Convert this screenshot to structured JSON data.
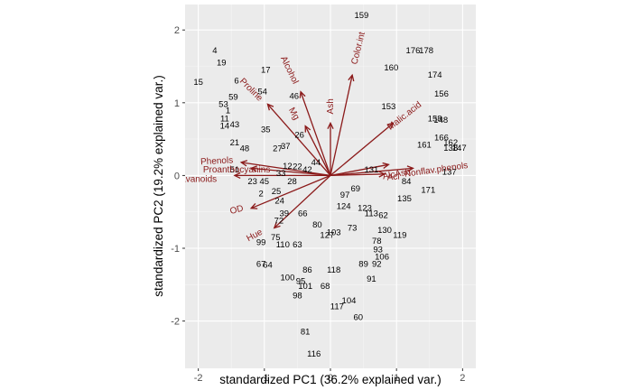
{
  "chart_data": {
    "type": "scatter",
    "subtype": "pca-biplot",
    "title": "",
    "xlabel": "standardized PC1 (36.2% explained var.)",
    "ylabel": "standardized PC2 (19.2% explained var.)",
    "xlim": [
      -2.2,
      2.2
    ],
    "ylim": [
      -2.65,
      2.35
    ],
    "xticks": [
      -2,
      -1,
      0,
      1,
      2
    ],
    "yticks": [
      -2,
      -1,
      0,
      1,
      2
    ],
    "xtick_labels": [
      "-2",
      "-1",
      "0",
      "1",
      "2"
    ],
    "ytick_labels": [
      "-2",
      "-1",
      "0",
      "1",
      "2"
    ],
    "grid": true,
    "legend": "none",
    "colors": {
      "panel_background": "#ebebeb",
      "grid_major": "#ffffff",
      "grid_minor": "#f5f5f5",
      "arrow": "#8b1a1a",
      "point_label": "#000000",
      "tick_label": "#4d4d4d"
    },
    "points": [
      {
        "label": "159",
        "x": 0.47,
        "y": 2.2
      },
      {
        "label": "4",
        "x": -1.75,
        "y": 1.72
      },
      {
        "label": "19",
        "x": -1.65,
        "y": 1.55
      },
      {
        "label": "15",
        "x": -2.0,
        "y": 1.28
      },
      {
        "label": "17",
        "x": -0.98,
        "y": 1.45
      },
      {
        "label": "6",
        "x": -1.42,
        "y": 1.3
      },
      {
        "label": "53",
        "x": -1.62,
        "y": 0.98
      },
      {
        "label": "59",
        "x": -1.47,
        "y": 1.08
      },
      {
        "label": "54",
        "x": -1.03,
        "y": 1.15
      },
      {
        "label": "1",
        "x": -1.55,
        "y": 0.89
      },
      {
        "label": "11",
        "x": -1.6,
        "y": 0.78
      },
      {
        "label": "14",
        "x": -1.6,
        "y": 0.68
      },
      {
        "label": "43",
        "x": -1.45,
        "y": 0.7
      },
      {
        "label": "21",
        "x": -1.45,
        "y": 0.45
      },
      {
        "label": "48",
        "x": -1.3,
        "y": 0.37
      },
      {
        "label": "35",
        "x": -0.98,
        "y": 0.63
      },
      {
        "label": "46",
        "x": -0.55,
        "y": 1.09
      },
      {
        "label": "26",
        "x": -0.47,
        "y": 0.56
      },
      {
        "label": "37",
        "x": -0.68,
        "y": 0.4
      },
      {
        "label": "27",
        "x": -0.8,
        "y": 0.37
      },
      {
        "label": "44",
        "x": -0.22,
        "y": 0.18
      },
      {
        "label": "42",
        "x": -0.35,
        "y": 0.08
      },
      {
        "label": "22",
        "x": -0.5,
        "y": 0.12
      },
      {
        "label": "12",
        "x": -0.65,
        "y": 0.13
      },
      {
        "label": "33",
        "x": -0.75,
        "y": 0.03
      },
      {
        "label": "28",
        "x": -0.58,
        "y": -0.08
      },
      {
        "label": "45",
        "x": -1.0,
        "y": -0.08
      },
      {
        "label": "23",
        "x": -1.18,
        "y": -0.08
      },
      {
        "label": "51",
        "x": -1.45,
        "y": 0.08
      },
      {
        "label": "2",
        "x": -1.05,
        "y": -0.25
      },
      {
        "label": "25",
        "x": -0.82,
        "y": -0.22
      },
      {
        "label": "24",
        "x": -0.77,
        "y": -0.35
      },
      {
        "label": "72",
        "x": -0.78,
        "y": -0.62
      },
      {
        "label": "39",
        "x": -0.7,
        "y": -0.52
      },
      {
        "label": "66",
        "x": -0.42,
        "y": -0.52
      },
      {
        "label": "99",
        "x": -1.05,
        "y": -0.92
      },
      {
        "label": "75",
        "x": -0.83,
        "y": -0.85
      },
      {
        "label": "110",
        "x": -0.72,
        "y": -0.95
      },
      {
        "label": "63",
        "x": -0.5,
        "y": -0.95
      },
      {
        "label": "67",
        "x": -1.05,
        "y": -1.22
      },
      {
        "label": "64",
        "x": -0.95,
        "y": -1.23
      },
      {
        "label": "80",
        "x": -0.2,
        "y": -0.68
      },
      {
        "label": "127",
        "x": -0.05,
        "y": -0.82
      },
      {
        "label": "103",
        "x": 0.05,
        "y": -0.78
      },
      {
        "label": "73",
        "x": 0.33,
        "y": -0.72
      },
      {
        "label": "100",
        "x": -0.65,
        "y": -1.4
      },
      {
        "label": "86",
        "x": -0.35,
        "y": -1.3
      },
      {
        "label": "95",
        "x": -0.45,
        "y": -1.45
      },
      {
        "label": "101",
        "x": -0.38,
        "y": -1.52
      },
      {
        "label": "98",
        "x": -0.5,
        "y": -1.65
      },
      {
        "label": "68",
        "x": -0.08,
        "y": -1.52
      },
      {
        "label": "118",
        "x": 0.05,
        "y": -1.3
      },
      {
        "label": "117",
        "x": 0.1,
        "y": -1.8
      },
      {
        "label": "104",
        "x": 0.28,
        "y": -1.72
      },
      {
        "label": "60",
        "x": 0.42,
        "y": -1.95
      },
      {
        "label": "81",
        "x": -0.38,
        "y": -2.15
      },
      {
        "label": "116",
        "x": -0.25,
        "y": -2.45
      },
      {
        "label": "89",
        "x": 0.5,
        "y": -1.22
      },
      {
        "label": "92",
        "x": 0.7,
        "y": -1.22
      },
      {
        "label": "106",
        "x": 0.78,
        "y": -1.12
      },
      {
        "label": "93",
        "x": 0.72,
        "y": -1.02
      },
      {
        "label": "91",
        "x": 0.62,
        "y": -1.42
      },
      {
        "label": "119",
        "x": 1.05,
        "y": -0.82
      },
      {
        "label": "130",
        "x": 0.82,
        "y": -0.75
      },
      {
        "label": "78",
        "x": 0.7,
        "y": -0.9
      },
      {
        "label": "62",
        "x": 0.8,
        "y": -0.55
      },
      {
        "label": "123",
        "x": 0.52,
        "y": -0.45
      },
      {
        "label": "113",
        "x": 0.62,
        "y": -0.52
      },
      {
        "label": "124",
        "x": 0.2,
        "y": -0.42
      },
      {
        "label": "97",
        "x": 0.22,
        "y": -0.27
      },
      {
        "label": "69",
        "x": 0.38,
        "y": -0.18
      },
      {
        "label": "131",
        "x": 0.62,
        "y": 0.08
      },
      {
        "label": "135",
        "x": 1.12,
        "y": -0.32
      },
      {
        "label": "84",
        "x": 1.15,
        "y": -0.08
      },
      {
        "label": "171",
        "x": 1.48,
        "y": -0.2
      },
      {
        "label": "176",
        "x": 1.25,
        "y": 1.72
      },
      {
        "label": "178",
        "x": 1.45,
        "y": 1.72
      },
      {
        "label": "160",
        "x": 0.92,
        "y": 1.48
      },
      {
        "label": "174",
        "x": 1.58,
        "y": 1.38
      },
      {
        "label": "156",
        "x": 1.68,
        "y": 1.12
      },
      {
        "label": "153",
        "x": 0.88,
        "y": 0.95
      },
      {
        "label": "158",
        "x": 1.58,
        "y": 0.78
      },
      {
        "label": "148",
        "x": 1.67,
        "y": 0.76
      },
      {
        "label": "166",
        "x": 1.68,
        "y": 0.52
      },
      {
        "label": "162",
        "x": 1.82,
        "y": 0.45
      },
      {
        "label": "138",
        "x": 1.82,
        "y": 0.38
      },
      {
        "label": "147",
        "x": 1.95,
        "y": 0.38
      },
      {
        "label": "137",
        "x": 1.8,
        "y": 0.05
      },
      {
        "label": "161",
        "x": 1.42,
        "y": 0.42
      }
    ],
    "arrows": [
      {
        "label": "Alcohol",
        "x": -0.45,
        "y": 1.15,
        "label_x": -0.62,
        "label_y": 1.45,
        "label_angle": 64
      },
      {
        "label": "Color.int",
        "x": 0.33,
        "y": 1.38,
        "label_x": 0.42,
        "label_y": 1.75,
        "label_angle": -76
      },
      {
        "label": "Ash",
        "x": 0.0,
        "y": 0.72,
        "label_x": 0.0,
        "label_y": 0.95,
        "label_angle": -90
      },
      {
        "label": "Mg",
        "x": -0.38,
        "y": 0.68,
        "label_x": -0.55,
        "label_y": 0.85,
        "label_angle": 60
      },
      {
        "label": "Proline",
        "x": -0.95,
        "y": 0.98,
        "label_x": -1.2,
        "label_y": 1.18,
        "label_angle": 45
      },
      {
        "label": "Malic.acid",
        "x": 0.95,
        "y": 0.72,
        "label_x": 1.12,
        "label_y": 0.82,
        "label_angle": -38
      },
      {
        "label": "AlcAsh",
        "x": 0.88,
        "y": 0.15,
        "label_x": 1.0,
        "label_y": 0.02,
        "label_angle": -10
      },
      {
        "label": "Acl",
        "x": 0.82,
        "y": 0.02,
        "label_x": 0.95,
        "label_y": -0.02,
        "label_angle": -5
      },
      {
        "label": "Nonflav.phenols",
        "x": 1.25,
        "y": 0.1,
        "label_x": 1.6,
        "label_y": 0.08,
        "label_angle": -8
      },
      {
        "label": "Phenols",
        "x": -1.35,
        "y": 0.18,
        "label_x": -1.72,
        "label_y": 0.2,
        "label_angle": -3
      },
      {
        "label": "Proanthocyanins",
        "x": -1.2,
        "y": 0.1,
        "label_x": -1.42,
        "label_y": 0.08,
        "label_angle": 0
      },
      {
        "label": "Flavanoids",
        "x": -1.45,
        "y": 0.0,
        "label_x": -2.05,
        "label_y": -0.05,
        "label_angle": 0
      },
      {
        "label": "OD",
        "x": -1.2,
        "y": -0.45,
        "label_x": -1.42,
        "label_y": -0.47,
        "label_angle": -15
      },
      {
        "label": "Hue",
        "x": -0.85,
        "y": -0.72,
        "label_x": -1.15,
        "label_y": -0.82,
        "label_angle": -28
      }
    ]
  }
}
